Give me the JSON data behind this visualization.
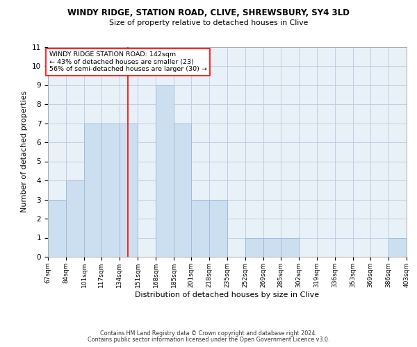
{
  "title": "WINDY RIDGE, STATION ROAD, CLIVE, SHREWSBURY, SY4 3LD",
  "subtitle": "Size of property relative to detached houses in Clive",
  "xlabel": "Distribution of detached houses by size in Clive",
  "ylabel": "Number of detached properties",
  "footnote1": "Contains HM Land Registry data © Crown copyright and database right 2024.",
  "footnote2": "Contains public sector information licensed under the Open Government Licence v3.0.",
  "bar_color": "#ccdff0",
  "bar_edge_color": "#a0bcd8",
  "background_color": "#e8f0f8",
  "grid_color": "#b8cce0",
  "red_line_x": 142,
  "annotation_line1": "WINDY RIDGE STATION ROAD: 142sqm",
  "annotation_line2": "← 43% of detached houses are smaller (23)",
  "annotation_line3": "56% of semi-detached houses are larger (30) →",
  "bin_edges": [
    67,
    84,
    101,
    117,
    134,
    151,
    168,
    185,
    201,
    218,
    235,
    252,
    269,
    285,
    302,
    319,
    336,
    353,
    369,
    386,
    403
  ],
  "bar_heights": [
    3,
    4,
    7,
    7,
    7,
    0,
    9,
    7,
    3,
    3,
    0,
    1,
    1,
    1,
    0,
    0,
    0,
    0,
    0,
    1
  ],
  "ylim": [
    0,
    11
  ],
  "yticks": [
    0,
    1,
    2,
    3,
    4,
    5,
    6,
    7,
    8,
    9,
    10,
    11
  ]
}
